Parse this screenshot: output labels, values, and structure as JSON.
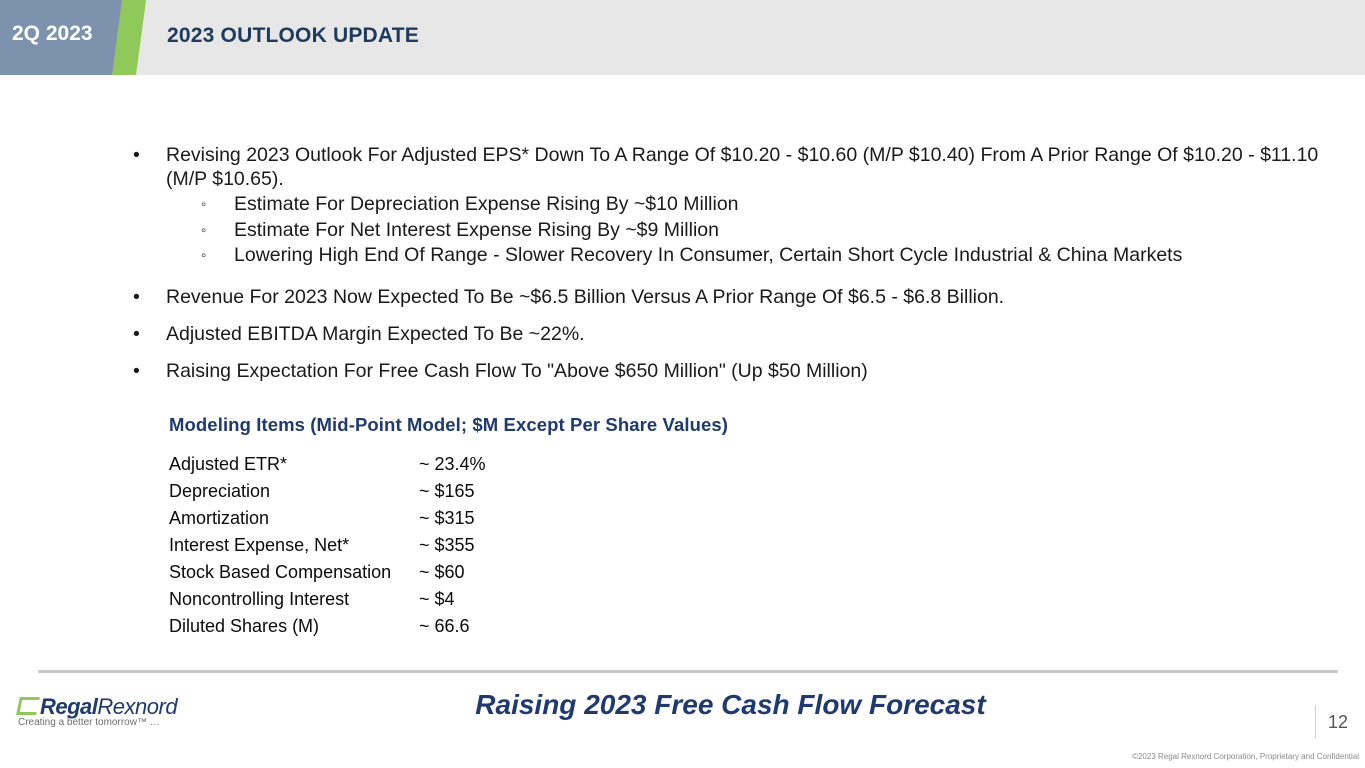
{
  "header": {
    "quarter": "2Q 2023",
    "title": "2023 OUTLOOK UPDATE"
  },
  "bullets": {
    "b1": "Revising 2023 Outlook For Adjusted EPS* Down To A Range Of $10.20 - $10.60 (M/P $10.40) From A Prior Range Of $10.20 - $11.10 (M/P $10.65).",
    "b1_sub": [
      "Estimate For Depreciation Expense Rising By ~$10 Million",
      "Estimate For Net Interest Expense Rising By ~$9 Million",
      "Lowering High End Of Range - Slower Recovery In Consumer, Certain Short Cycle Industrial & China Markets"
    ],
    "b2": "Revenue For 2023 Now Expected To Be ~$6.5 Billion Versus A Prior Range Of $6.5 - $6.8 Billion.",
    "b3": "Adjusted EBITDA Margin Expected To Be ~22%.",
    "b4": "Raising Expectation For Free Cash Flow To \"Above $650 Million\" (Up $50 Million)"
  },
  "modeling": {
    "title": "Modeling Items (Mid-Point Model; $M Except Per Share Values)",
    "rows": [
      {
        "label": "Adjusted ETR*",
        "value": "~ 23.4%"
      },
      {
        "label": "Depreciation",
        "value": "~ $165"
      },
      {
        "label": "Amortization",
        "value": "~ $315"
      },
      {
        "label": "Interest Expense, Net*",
        "value": "~ $355"
      },
      {
        "label": "Stock Based Compensation",
        "value": "~ $60"
      },
      {
        "label": "Noncontrolling Interest",
        "value": "~ $4"
      },
      {
        "label": "Diluted Shares (M)",
        "value": "~ 66.6"
      }
    ]
  },
  "footer": {
    "logo_part1": "Regal",
    "logo_part2": "Rexnord",
    "tagline": "Creating a better tomorrow™ …",
    "headline": "Raising 2023 Free Cash Flow Forecast",
    "page_number": "12",
    "copyright": "©2023 Regal Rexnord Corporation, Proprietary and Confidential"
  },
  "colors": {
    "header_band": "#e7e7e7",
    "quarter_tab": "#7d93ad",
    "accent_green": "#8fc95a",
    "navy": "#1f3a6e"
  },
  "icons": [
    "regal-rexnord-logo-mark"
  ]
}
